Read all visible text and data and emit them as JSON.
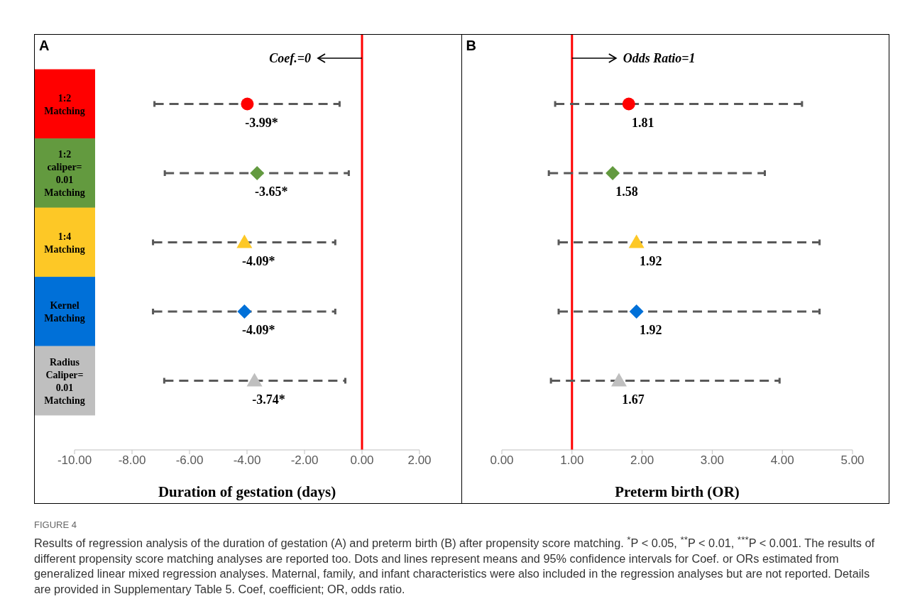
{
  "chart_data": [
    {
      "type": "scatter",
      "title": "A",
      "orientation": "horizontal",
      "categories": [
        "1:2 Matching",
        "1:2 caliper= 0.01 Matching",
        "1:4 Matching",
        "Kernel Matching",
        "Radius Caliper= 0.01 Matching"
      ],
      "xlabel": "Duration of gestation (days)",
      "xlim": [
        -10,
        2
      ],
      "xticks": [
        {
          "value": -10,
          "label": "-10.00"
        },
        {
          "value": -8,
          "label": "-8.00"
        },
        {
          "value": -6,
          "label": "-6.00"
        },
        {
          "value": -4,
          "label": "-4.00"
        },
        {
          "value": -2,
          "label": "-2.00"
        },
        {
          "value": 0,
          "label": "0.00"
        },
        {
          "value": 2,
          "label": "2.00"
        }
      ],
      "ref_lines": [
        {
          "axis": "x",
          "value": 0,
          "label": "Coef.=0",
          "color": "#ff0000"
        }
      ],
      "series": [
        {
          "color": "#ff0000",
          "marker": "circle",
          "values": [
            -3.99,
            null,
            null,
            null,
            null
          ],
          "errors": [
            [
              -7.22,
              -0.78
            ],
            null,
            null,
            null,
            null
          ],
          "value_labels": [
            "-3.99*",
            null,
            null,
            null,
            null
          ]
        },
        {
          "color": "#639a3f",
          "marker": "diamond",
          "values": [
            null,
            -3.65,
            null,
            null,
            null
          ],
          "errors": [
            null,
            [
              -6.86,
              -0.46
            ],
            null,
            null,
            null
          ],
          "value_labels": [
            null,
            "-3.65*",
            null,
            null,
            null
          ]
        },
        {
          "color": "#fdc826",
          "marker": "triangle",
          "values": [
            null,
            null,
            -4.09,
            null,
            null
          ],
          "errors": [
            null,
            null,
            [
              -7.27,
              -0.93
            ],
            null,
            null
          ],
          "value_labels": [
            null,
            null,
            "-4.09*",
            null,
            null
          ]
        },
        {
          "color": "#0070d8",
          "marker": "diamond",
          "values": [
            null,
            null,
            null,
            -4.09,
            null
          ],
          "errors": [
            null,
            null,
            null,
            [
              -7.27,
              -0.93
            ],
            null
          ],
          "value_labels": [
            null,
            null,
            null,
            "-4.09*",
            null
          ]
        },
        {
          "color": "#bfbfbf",
          "marker": "triangle",
          "values": [
            null,
            null,
            null,
            null,
            -3.74
          ],
          "errors": [
            null,
            null,
            null,
            null,
            [
              -6.88,
              -0.58
            ]
          ],
          "value_labels": [
            null,
            null,
            null,
            null,
            "-3.74*"
          ]
        }
      ],
      "annotations": [
        "FIGURE 4",
        "Results of regression analysis of the duration of gestation (A) and preterm birth (B) after propensity score matching. $^{*}$P < 0.05, $^{**}$P < 0.01, $^{***}$P < 0.001. The results of different propensity score matching analyses are reported too. Dots and lines represent means and 95% confidence intervals for Coef. or ORs estimated from generalized linear mixed regression analyses. Maternal, family, and infant characteristics were also included in the regression analyses but are not reported. Details are provided in Supplementary Table 5. Coef, coefficient; OR, odds ratio."
      ]
    },
    {
      "type": "scatter",
      "title": "B",
      "orientation": "horizontal",
      "categories": [
        null,
        null,
        null,
        null,
        null
      ],
      "tick_labels": "x",
      "xlabel": "Preterm birth (OR)",
      "xlim": [
        0,
        5
      ],
      "xticks": [
        {
          "value": 0,
          "label": "0.00"
        },
        {
          "value": 1,
          "label": "1.00"
        },
        {
          "value": 2,
          "label": "2.00"
        },
        {
          "value": 3,
          "label": "3.00"
        },
        {
          "value": 4,
          "label": "4.00"
        },
        {
          "value": 5,
          "label": "5.00"
        }
      ],
      "ref_lines": [
        {
          "axis": "x",
          "value": 1,
          "label": "Odds Ratio=1",
          "color": "#ff0000"
        }
      ],
      "series": [
        {
          "color": "#ff0000",
          "marker": "circle",
          "values": [
            1.81,
            null,
            null,
            null,
            null
          ],
          "errors": [
            [
              0.76,
              4.28
            ],
            null,
            null,
            null,
            null
          ],
          "value_labels": [
            "1.81",
            null,
            null,
            null,
            null
          ]
        },
        {
          "color": "#639a3f",
          "marker": "diamond",
          "values": [
            null,
            1.58,
            null,
            null,
            null
          ],
          "errors": [
            null,
            [
              0.67,
              3.75
            ],
            null,
            null,
            null
          ],
          "value_labels": [
            null,
            "1.58",
            null,
            null,
            null
          ]
        },
        {
          "color": "#fdc826",
          "marker": "triangle",
          "values": [
            null,
            null,
            1.92,
            null,
            null
          ],
          "errors": [
            null,
            null,
            [
              0.81,
              4.53
            ],
            null,
            null
          ],
          "value_labels": [
            null,
            null,
            "1.92",
            null,
            null
          ]
        },
        {
          "color": "#0070d8",
          "marker": "diamond",
          "values": [
            null,
            null,
            null,
            1.92,
            null
          ],
          "errors": [
            null,
            null,
            null,
            [
              0.81,
              4.53
            ],
            null
          ],
          "value_labels": [
            null,
            null,
            null,
            "1.92",
            null
          ]
        },
        {
          "color": "#bfbfbf",
          "marker": "triangle",
          "values": [
            null,
            null,
            null,
            null,
            1.67
          ],
          "errors": [
            null,
            null,
            null,
            null,
            [
              0.7,
              3.96
            ]
          ],
          "value_labels": [
            null,
            null,
            null,
            null,
            "1.67"
          ]
        }
      ]
    }
  ]
}
